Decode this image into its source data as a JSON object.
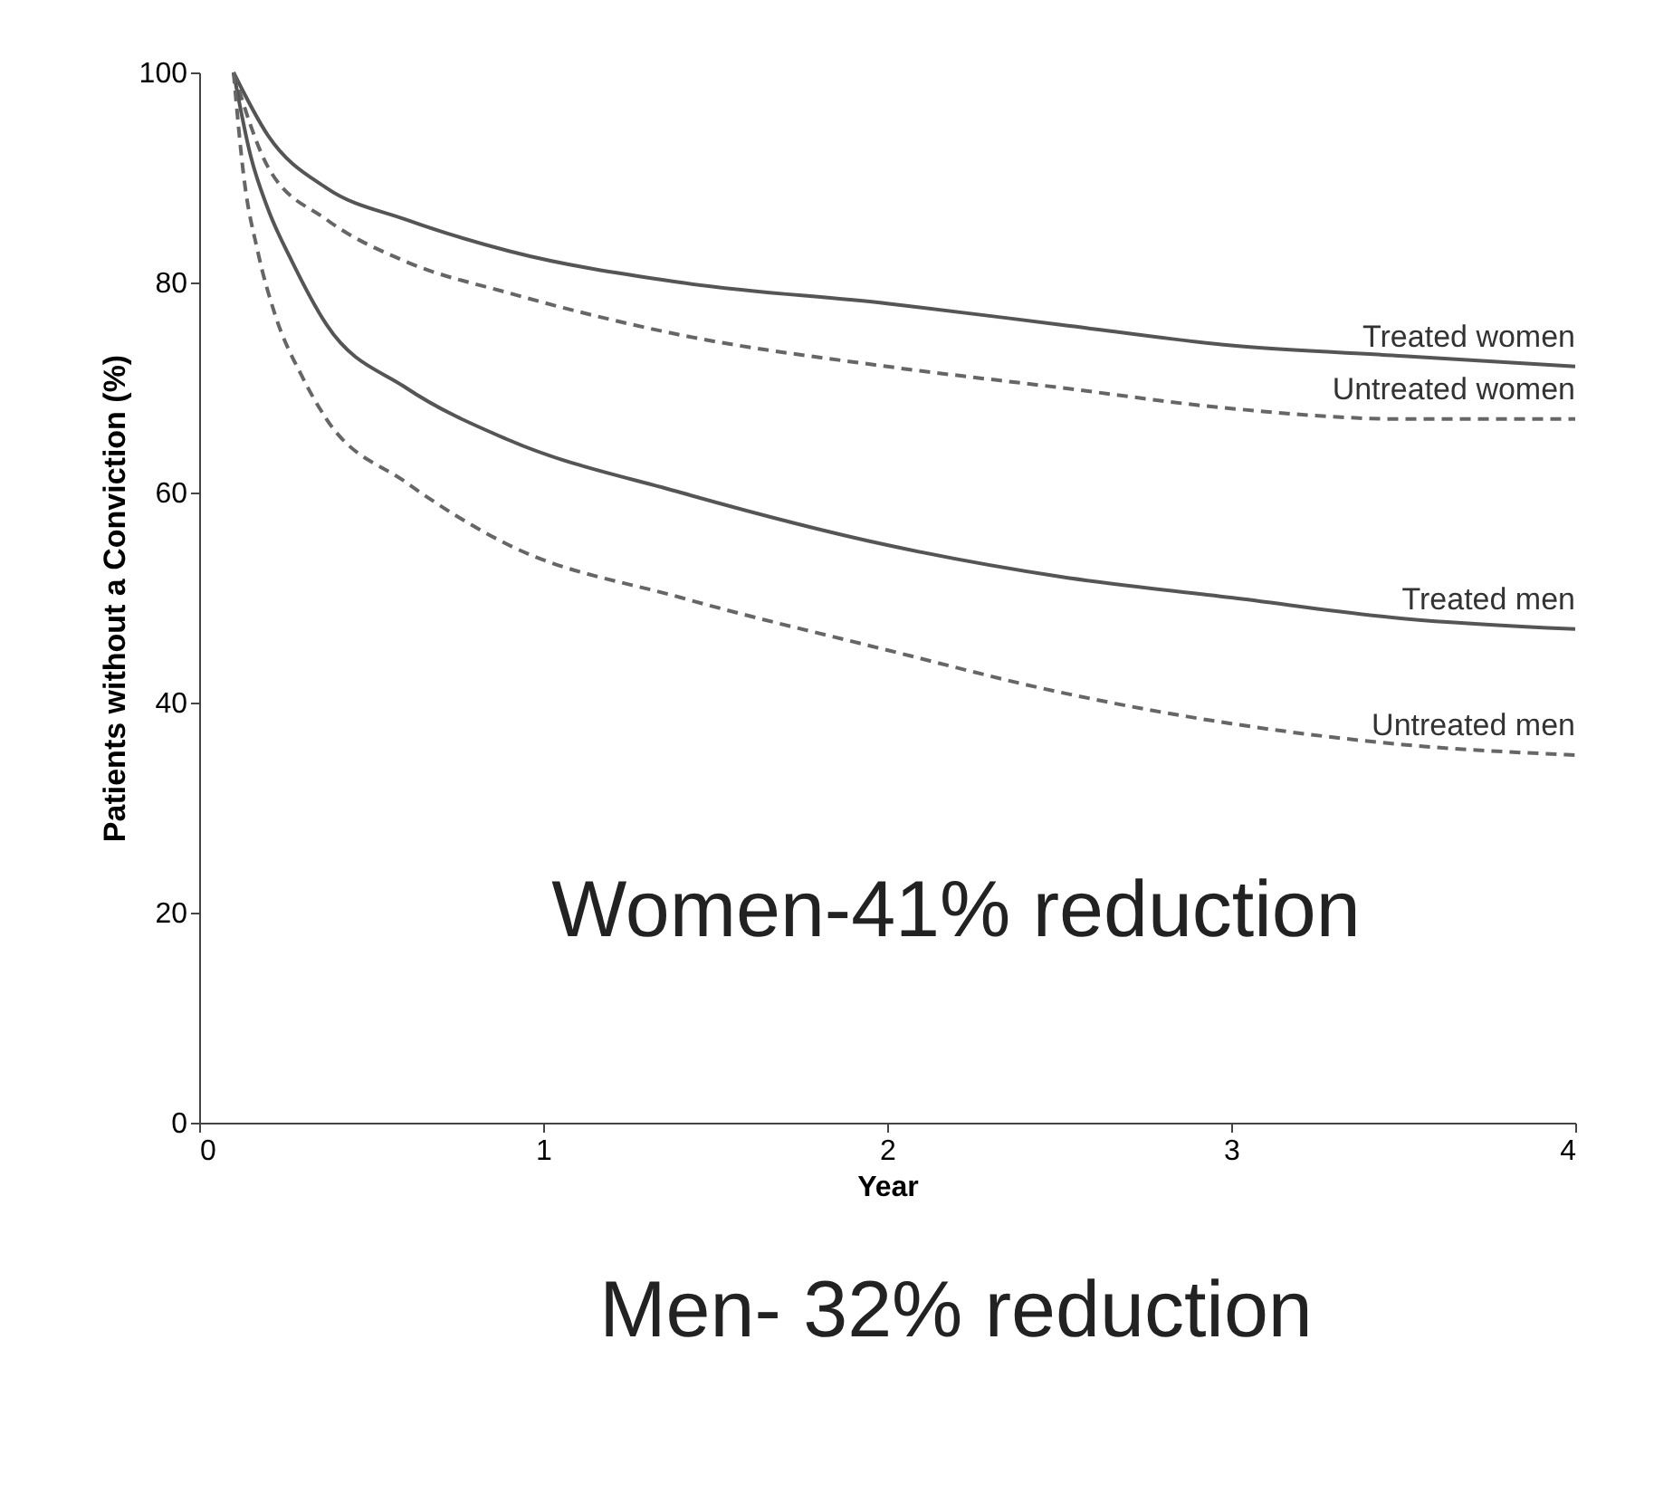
{
  "chart_data": {
    "type": "line",
    "xlabel": "Year",
    "ylabel": "Patients without a Conviction (%)",
    "xlim": [
      0,
      4
    ],
    "xticks": [
      0,
      1,
      2,
      3,
      4
    ],
    "ylim": [
      0,
      100
    ],
    "yticks": [
      0,
      20,
      40,
      60,
      80,
      100
    ],
    "grid": false,
    "legend": false,
    "series": [
      {
        "name": "Treated women",
        "color": "#555555",
        "line_style": "solid",
        "x": [
          0.1,
          0.2,
          0.37,
          0.6,
          0.9,
          1.4,
          2,
          2.5,
          3,
          3.5,
          4
        ],
        "values": [
          100,
          94,
          89,
          86,
          83,
          80,
          78,
          76,
          74,
          73,
          72
        ]
      },
      {
        "name": "Untreated women",
        "color": "#666666",
        "line_style": "dashed",
        "x": [
          0.1,
          0.2,
          0.37,
          0.6,
          0.9,
          1.4,
          2,
          2.5,
          3,
          3.5,
          4
        ],
        "values": [
          100,
          91,
          86,
          82,
          79,
          75,
          72,
          70,
          68,
          67,
          67
        ]
      },
      {
        "name": "Treated men",
        "color": "#555555",
        "line_style": "solid",
        "x": [
          0.1,
          0.15,
          0.2,
          0.27,
          0.37,
          0.6,
          0.9,
          1.4,
          2,
          2.5,
          3,
          3.5,
          4
        ],
        "values": [
          100,
          92,
          87,
          82,
          76,
          70,
          65,
          60,
          55,
          52,
          50,
          48,
          47
        ]
      },
      {
        "name": "Untreated men",
        "color": "#666666",
        "line_style": "dashed",
        "x": [
          0.1,
          0.13,
          0.17,
          0.22,
          0.3,
          0.37,
          0.6,
          0.9,
          1.4,
          2,
          2.5,
          3,
          3.5,
          4
        ],
        "values": [
          100,
          90,
          83,
          77,
          71,
          67,
          61,
          55,
          50,
          45,
          41,
          38,
          36,
          35
        ]
      }
    ],
    "annotations": [
      "Women-41% reduction",
      "Men- 32% reduction"
    ]
  }
}
